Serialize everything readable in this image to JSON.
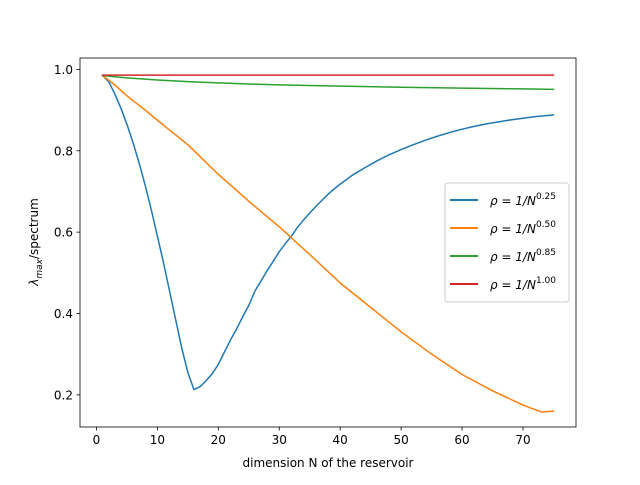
{
  "chart_data": {
    "type": "line",
    "title": "",
    "xlabel": "dimension N of the reservoir",
    "ylabel": "λmax/spectrum",
    "ylabel_parts": {
      "lambda": "λ",
      "sub": "max",
      "rest": "/spectrum"
    },
    "xlim": [
      -2.7,
      78.7
    ],
    "ylim": [
      0.121,
      1.028
    ],
    "xticks": [
      0,
      10,
      20,
      30,
      40,
      50,
      60,
      70
    ],
    "yticks": [
      0.2,
      0.4,
      0.6,
      0.8,
      1.0
    ],
    "ytick_labels": [
      "0.2",
      "0.4",
      "0.6",
      "0.8",
      "1.0"
    ],
    "grid": false,
    "legend_position": "center-right",
    "series": [
      {
        "name": "ρ = 1/N^0.25",
        "label_parts": {
          "base": "ρ = 1/N",
          "exp": "0.25"
        },
        "color": "#1f77b4",
        "points": [
          [
            1,
            0.985
          ],
          [
            2,
            0.97
          ],
          [
            3,
            0.94
          ],
          [
            4,
            0.905
          ],
          [
            5,
            0.865
          ],
          [
            6,
            0.82
          ],
          [
            7,
            0.77
          ],
          [
            8,
            0.715
          ],
          [
            9,
            0.655
          ],
          [
            10,
            0.59
          ],
          [
            11,
            0.525
          ],
          [
            12,
            0.455
          ],
          [
            13,
            0.385
          ],
          [
            14,
            0.315
          ],
          [
            15,
            0.255
          ],
          [
            16,
            0.213
          ],
          [
            17,
            0.22
          ],
          [
            18,
            0.235
          ],
          [
            19,
            0.252
          ],
          [
            20,
            0.275
          ],
          [
            21,
            0.305
          ],
          [
            22,
            0.335
          ],
          [
            23,
            0.362
          ],
          [
            24,
            0.392
          ],
          [
            25,
            0.42
          ],
          [
            26,
            0.455
          ],
          [
            27,
            0.48
          ],
          [
            28,
            0.505
          ],
          [
            29,
            0.528
          ],
          [
            30,
            0.552
          ],
          [
            31,
            0.572
          ],
          [
            32,
            0.59
          ],
          [
            33,
            0.612
          ],
          [
            34,
            0.63
          ],
          [
            35,
            0.647
          ],
          [
            36,
            0.663
          ],
          [
            37,
            0.678
          ],
          [
            38,
            0.693
          ],
          [
            39,
            0.706
          ],
          [
            40,
            0.718
          ],
          [
            42,
            0.74
          ],
          [
            44,
            0.758
          ],
          [
            46,
            0.775
          ],
          [
            48,
            0.79
          ],
          [
            50,
            0.803
          ],
          [
            52,
            0.815
          ],
          [
            54,
            0.826
          ],
          [
            56,
            0.836
          ],
          [
            58,
            0.845
          ],
          [
            60,
            0.853
          ],
          [
            62,
            0.86
          ],
          [
            64,
            0.866
          ],
          [
            66,
            0.871
          ],
          [
            68,
            0.876
          ],
          [
            70,
            0.88
          ],
          [
            72,
            0.884
          ],
          [
            75,
            0.888
          ]
        ]
      },
      {
        "name": "ρ = 1/N^0.50",
        "label_parts": {
          "base": "ρ = 1/N",
          "exp": "0.50"
        },
        "color": "#ff7f0e",
        "points": [
          [
            1,
            0.985
          ],
          [
            3,
            0.962
          ],
          [
            5,
            0.935
          ],
          [
            8,
            0.9
          ],
          [
            10,
            0.875
          ],
          [
            15,
            0.815
          ],
          [
            20,
            0.742
          ],
          [
            25,
            0.676
          ],
          [
            30,
            0.613
          ],
          [
            35,
            0.545
          ],
          [
            40,
            0.475
          ],
          [
            45,
            0.415
          ],
          [
            50,
            0.355
          ],
          [
            55,
            0.3
          ],
          [
            60,
            0.25
          ],
          [
            65,
            0.21
          ],
          [
            70,
            0.175
          ],
          [
            73,
            0.158
          ],
          [
            75,
            0.16
          ]
        ]
      },
      {
        "name": "ρ = 1/N^0.85",
        "label_parts": {
          "base": "ρ = 1/N",
          "exp": "0.85"
        },
        "color": "#2ca02c",
        "points": [
          [
            1,
            0.985
          ],
          [
            3,
            0.982
          ],
          [
            5,
            0.979
          ],
          [
            10,
            0.974
          ],
          [
            15,
            0.97
          ],
          [
            20,
            0.967
          ],
          [
            25,
            0.964
          ],
          [
            30,
            0.962
          ],
          [
            40,
            0.959
          ],
          [
            50,
            0.956
          ],
          [
            60,
            0.954
          ],
          [
            70,
            0.952
          ],
          [
            75,
            0.951
          ]
        ]
      },
      {
        "name": "ρ = 1/N^1.00",
        "label_parts": {
          "base": "ρ = 1/N",
          "exp": "1.00"
        },
        "color": "#d62728",
        "points": [
          [
            1,
            0.986
          ],
          [
            10,
            0.986
          ],
          [
            20,
            0.986
          ],
          [
            30,
            0.986
          ],
          [
            40,
            0.986
          ],
          [
            50,
            0.986
          ],
          [
            60,
            0.986
          ],
          [
            70,
            0.986
          ],
          [
            75,
            0.986
          ]
        ]
      }
    ]
  }
}
